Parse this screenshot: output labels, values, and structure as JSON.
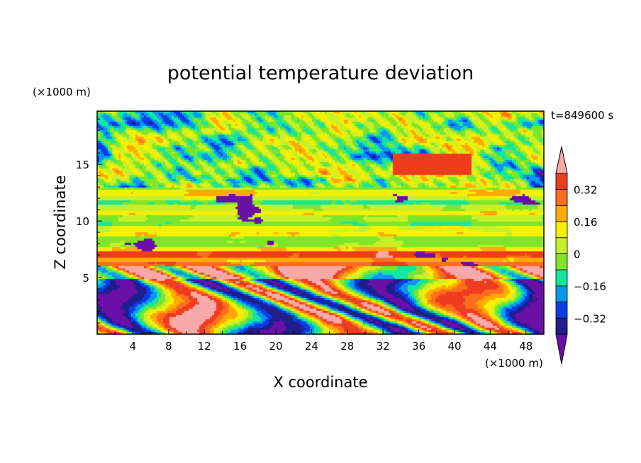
{
  "chart_data": {
    "type": "heatmap",
    "title": "potential temperature deviation",
    "xlabel": "X coordinate",
    "ylabel": "Z coordinate",
    "x_unit": "(×1000 m)",
    "y_unit": "(×1000 m)",
    "time_label": "t=849600 s",
    "xlim": [
      0,
      50
    ],
    "ylim": [
      0,
      19.7
    ],
    "x_ticks": [
      "4",
      "8",
      "12",
      "16",
      "20",
      "24",
      "28",
      "32",
      "36",
      "40",
      "44",
      "48"
    ],
    "y_ticks": [
      "5",
      "10",
      "15"
    ],
    "grid": false,
    "colorbar": {
      "placement": "right",
      "labels": [
        "0.32",
        "0.16",
        "0",
        "-0.16",
        "-0.32"
      ],
      "label_values": [
        0.32,
        0.16,
        0,
        -0.16,
        -0.32
      ],
      "levels": [
        -0.4,
        -0.32,
        -0.24,
        -0.16,
        -0.08,
        0,
        0.08,
        0.16,
        0.24,
        0.32,
        0.4
      ],
      "colors": [
        "#6a0fa8",
        "#1e1e8c",
        "#0a3ce6",
        "#0a96f0",
        "#14e6a0",
        "#7de628",
        "#c8f028",
        "#f5f000",
        "#ffaa00",
        "#ff6e1e",
        "#f03c1e",
        "#f7a8a8"
      ]
    },
    "field_description": "Banded potential temperature deviation field; strong turbulent eddies below z≈6, horizontal layered structure between z≈6 and z≈13, patchy mixed structure above z≈13."
  }
}
